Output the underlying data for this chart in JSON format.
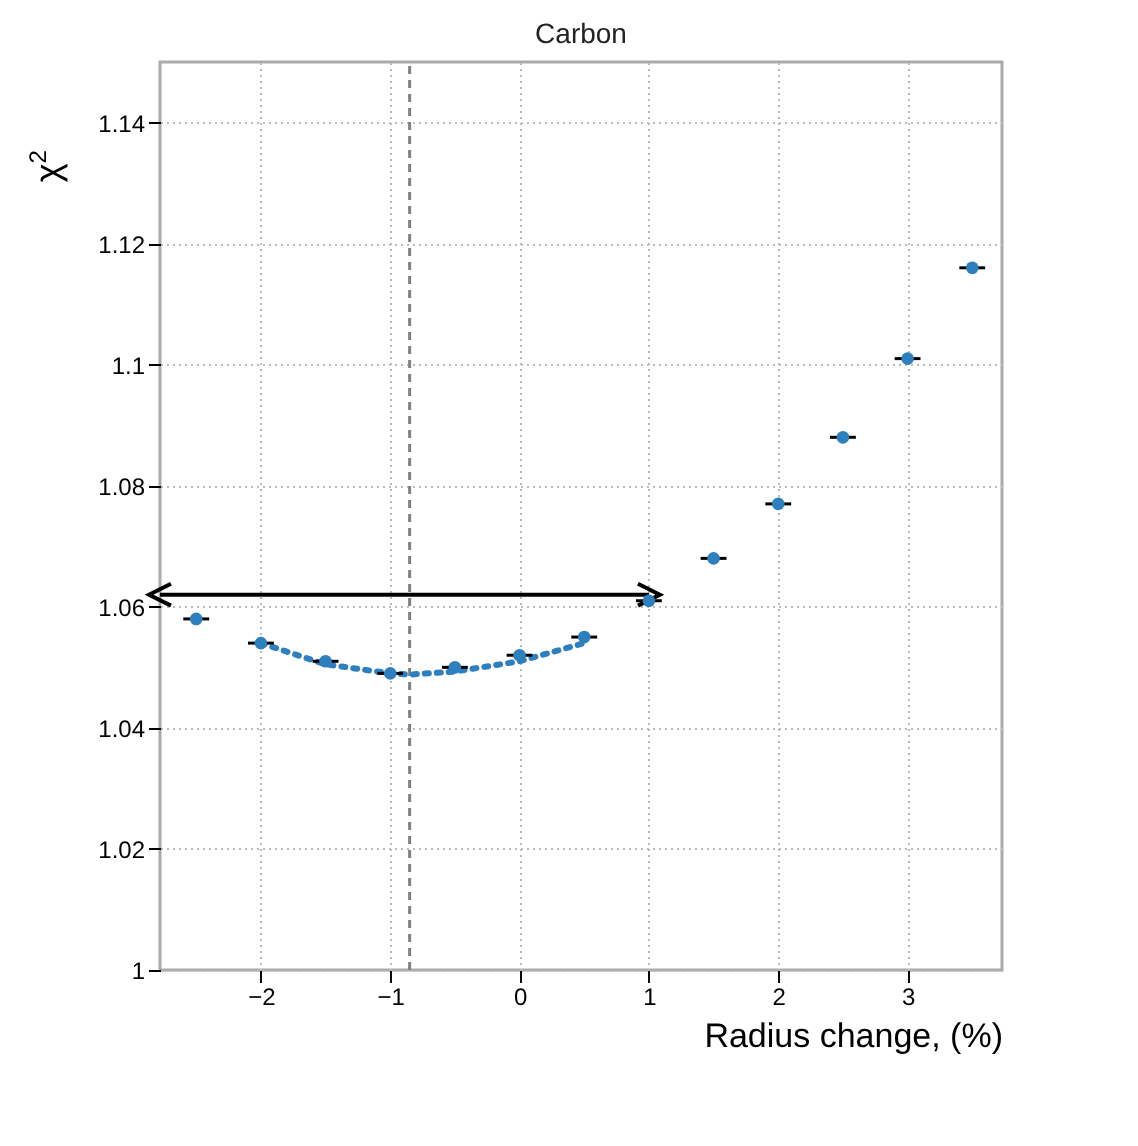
{
  "chart_data": {
    "type": "scatter",
    "title": "Carbon",
    "xlabel": "Radius change, (%)",
    "ylabel": "χ$^{2}$",
    "xlim": [
      -2.78,
      3.73
    ],
    "xticks": [
      -2,
      -1,
      0,
      1,
      2,
      3
    ],
    "ylim": [
      1,
      1.15
    ],
    "yticks": [
      1,
      1.02,
      1.04,
      1.06,
      1.08,
      1.1,
      1.12,
      1.14
    ],
    "grid": true,
    "marker": "circle",
    "series": [
      {
        "type": "scatter",
        "color": "#2e7fbd",
        "x": [
          -2.5,
          -2,
          -1.5,
          -1,
          -0.5,
          0,
          0.5,
          1,
          1.5,
          2,
          2.5,
          3,
          3.5
        ],
        "values": [
          1.058,
          1.054,
          1.051,
          1.049,
          1.05,
          1.052,
          1.055,
          1.061,
          1.068,
          1.077,
          1.088,
          1.101,
          1.116
        ],
        "xerrors": [
          0.1,
          0.1,
          0.1,
          0.1,
          0.1,
          0.1,
          0.1,
          0.1,
          0.1,
          0.1,
          0.1,
          0.1,
          0.1
        ]
      },
      {
        "type": "line",
        "color": "#2e7fbd",
        "line_style": "dotted",
        "marker": "none",
        "x": [
          -2,
          -1.5,
          -1,
          -0.85,
          -0.5,
          0,
          0.5
        ],
        "values": [
          1.054,
          1.0505,
          1.049,
          1.0488,
          1.0493,
          1.051,
          1.054
        ]
      }
    ],
    "ref_lines": [
      {
        "axis": "x",
        "value": -0.85,
        "color": "#808080",
        "line_style": "dashed"
      },
      {
        "axis": "y",
        "value": 1.062,
        "color": "#000000"
      }
    ]
  }
}
